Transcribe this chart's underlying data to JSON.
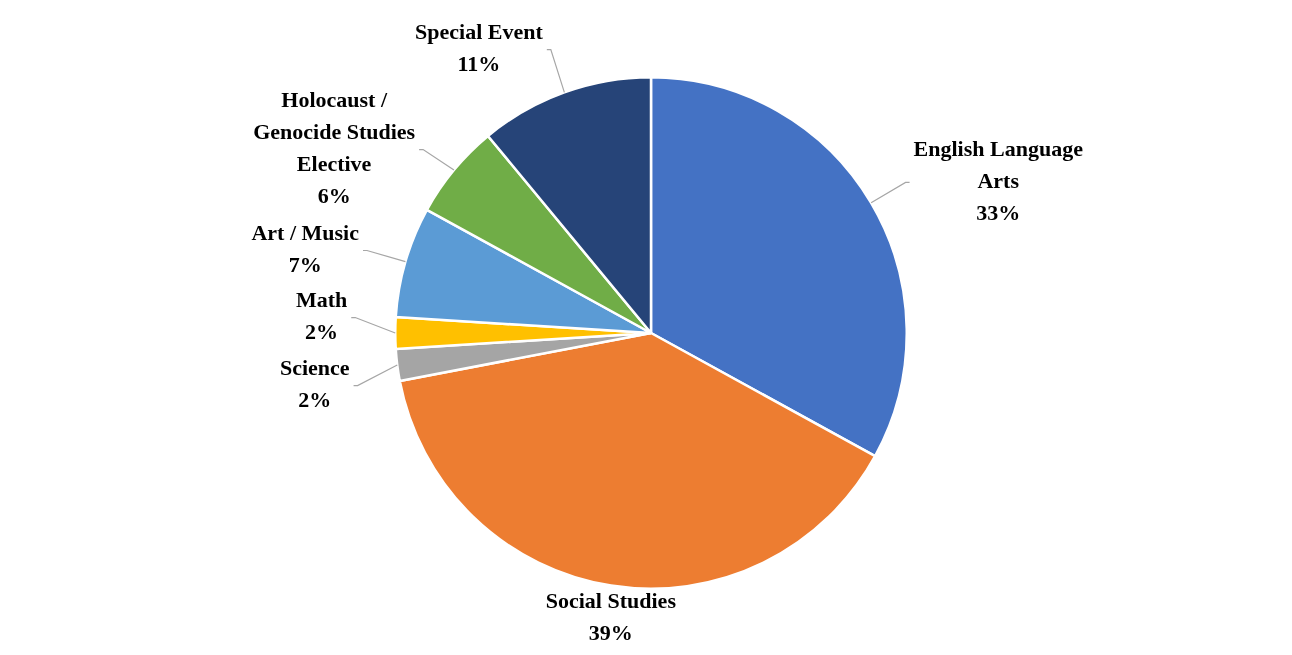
{
  "chart_data": {
    "type": "pie",
    "categories": [
      "English Language Arts",
      "Social Studies",
      "Science",
      "Math",
      "Art / Music",
      "Holocaust / Genocide Studies Elective",
      "Special Event"
    ],
    "values": [
      33,
      39,
      2,
      2,
      7,
      6,
      11
    ],
    "value_labels": [
      "33%",
      "39%",
      "2%",
      "2%",
      "7%",
      "6%",
      "11%"
    ],
    "colors": [
      "#4472c4",
      "#ed7d31",
      "#a5a5a5",
      "#ffc000",
      "#5b9bd5",
      "#70ad47",
      "#264478"
    ],
    "legend": false
  }
}
